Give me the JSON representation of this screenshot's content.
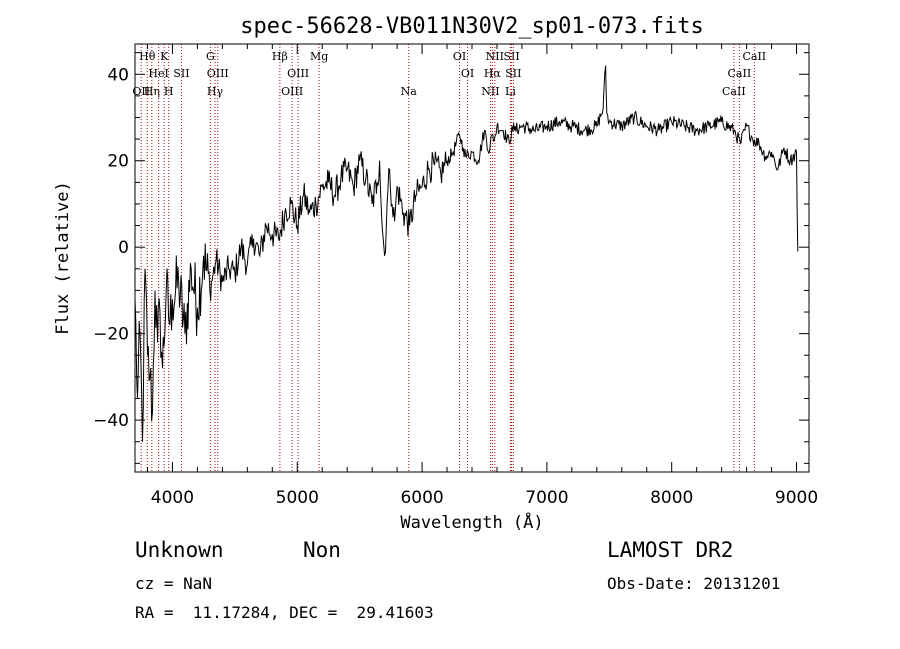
{
  "chart_data": {
    "type": "line",
    "title": "spec-56628-VB011N30V2_sp01-073.fits",
    "xlabel": "Wavelength (Å)",
    "ylabel": "Flux (relative)",
    "xlim": [
      3700,
      9100
    ],
    "ylim": [
      -52,
      47
    ],
    "xticks": [
      4000,
      5000,
      6000,
      7000,
      8000,
      9000
    ],
    "yticks": [
      -40,
      -20,
      0,
      20,
      40
    ],
    "line_color": "#000000",
    "marker_color": "#aa1111",
    "series": [
      {
        "x": [
          3700,
          3720,
          3740,
          3760,
          3780,
          3800,
          3820,
          3840,
          3860,
          3880,
          3900,
          3920,
          3950,
          3980,
          4000,
          4050,
          4100,
          4150,
          4200,
          4250,
          4300,
          4350,
          4400,
          4450,
          4500,
          4550,
          4600,
          4650,
          4700,
          4750,
          4800,
          4850,
          4900,
          4950,
          5000,
          5050,
          5100,
          5150,
          5200,
          5250,
          5300,
          5350,
          5400,
          5450,
          5500,
          5550,
          5600,
          5640,
          5660,
          5680,
          5700,
          5720,
          5740,
          5760,
          5780,
          5800,
          5850,
          5900,
          5950,
          6000,
          6050,
          6100,
          6150,
          6200,
          6250,
          6300,
          6330,
          6350,
          6400,
          6450,
          6500,
          6540,
          6560,
          6580,
          6600,
          6650,
          6700,
          6720,
          6740,
          6800,
          6900,
          7000,
          7100,
          7200,
          7300,
          7400,
          7450,
          7470,
          7480,
          7500,
          7600,
          7700,
          7800,
          7900,
          8000,
          8100,
          8200,
          8300,
          8400,
          8500,
          8550,
          8600,
          8650,
          8700,
          8750,
          8800,
          8850,
          8900,
          8950,
          9000,
          9010
        ],
        "y": [
          -12,
          -35,
          -20,
          -45,
          -5,
          -25,
          -30,
          -38,
          -10,
          -22,
          -15,
          -28,
          -10,
          -18,
          -12,
          -8,
          -20,
          -5,
          -14,
          -2,
          -10,
          -3,
          -8,
          -5,
          -6,
          0,
          -4,
          2,
          -2,
          5,
          3,
          2,
          8,
          10,
          5,
          12,
          8,
          10,
          14,
          15,
          12,
          16,
          18,
          14,
          20,
          16,
          10,
          15,
          20,
          5,
          -2,
          10,
          18,
          10,
          6,
          14,
          8,
          5,
          12,
          14,
          18,
          19,
          17,
          20,
          22,
          26,
          23,
          21,
          22,
          20,
          27,
          22,
          26,
          25,
          28,
          27,
          24,
          28,
          27,
          28,
          27,
          28,
          29,
          28,
          27,
          28,
          32,
          42,
          31,
          29,
          28,
          30,
          28,
          27,
          29,
          28,
          27,
          28,
          29,
          27,
          24,
          28,
          25,
          24,
          21,
          22,
          18,
          23,
          20,
          22,
          -1
        ]
      }
    ],
    "markers": [
      {
        "wl": 3750,
        "label": "OII",
        "row": 3
      },
      {
        "wl": 3798,
        "label": "Hθ",
        "row": 1
      },
      {
        "wl": 3835,
        "label": "Hη",
        "row": 3
      },
      {
        "wl": 3889,
        "label": "HeI",
        "row": 2
      },
      {
        "wl": 3934,
        "label": "K",
        "row": 1
      },
      {
        "wl": 3970,
        "label": "H",
        "row": 3
      },
      {
        "wl": 4072,
        "label": "SII",
        "row": 2
      },
      {
        "wl": 4304,
        "label": "G",
        "row": 1
      },
      {
        "wl": 4341,
        "label": "Hγ",
        "row": 3
      },
      {
        "wl": 4363,
        "label": "OIII",
        "row": 2
      },
      {
        "wl": 4861,
        "label": "Hβ",
        "row": 1
      },
      {
        "wl": 4959,
        "label": "OIII",
        "row": 3
      },
      {
        "wl": 5007,
        "label": "OIII",
        "row": 2
      },
      {
        "wl": 5175,
        "label": "Mg",
        "row": 1
      },
      {
        "wl": 5893,
        "label": "Na",
        "row": 3
      },
      {
        "wl": 6300,
        "label": "OI",
        "row": 1
      },
      {
        "wl": 6364,
        "label": "OI",
        "row": 2
      },
      {
        "wl": 6548,
        "label": "NII",
        "row": 3
      },
      {
        "wl": 6563,
        "label": "Hα",
        "row": 2
      },
      {
        "wl": 6583,
        "label": "NII",
        "row": 1
      },
      {
        "wl": 6717,
        "label": "SII",
        "row": 1
      },
      {
        "wl": 6731,
        "label": "SII",
        "row": 2
      },
      {
        "wl": 6708,
        "label": "Li",
        "row": 3
      },
      {
        "wl": 8498,
        "label": "CaII",
        "row": 3
      },
      {
        "wl": 8542,
        "label": "CaII",
        "row": 2
      },
      {
        "wl": 8662,
        "label": "CaII",
        "row": 1
      }
    ]
  },
  "footer": {
    "object_class": "Unknown",
    "subclass": "Non",
    "survey": "LAMOST DR2",
    "redshift": "cz = NaN",
    "obs_date": "Obs-Date: 20131201",
    "coords": "RA =  11.17284, DEC =  29.41603"
  }
}
